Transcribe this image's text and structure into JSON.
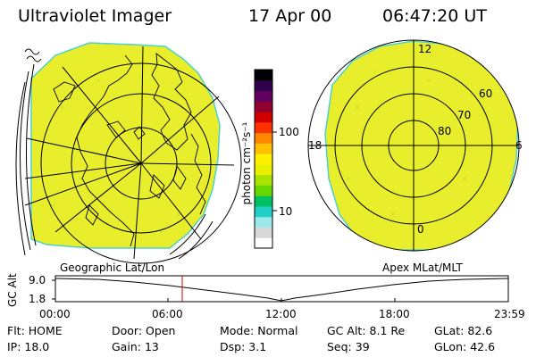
{
  "header": {
    "instrument": "Ultraviolet Imager",
    "date": "17 Apr 00",
    "time": "06:47:20 UT"
  },
  "geo_panel": {
    "label": "Geographic Lat/Lon"
  },
  "apex_panel": {
    "label": "Apex MLat/MLT",
    "mlt_labels": {
      "top": "12",
      "left": "18",
      "right": "6",
      "bottom": "0"
    },
    "lat_labels": [
      "60",
      "70",
      "80"
    ]
  },
  "colorbar": {
    "unit": "photon cm⁻²s⁻¹",
    "ticks": [
      "100",
      "10"
    ],
    "colors": [
      "#ffffff",
      "#d8d8d8",
      "#9be8e8",
      "#22d0c8",
      "#00c060",
      "#66d800",
      "#a8e400",
      "#e8f000",
      "#fff000",
      "#ffc000",
      "#ff8800",
      "#ff3000",
      "#d00000",
      "#900030",
      "#600060",
      "#30004a",
      "#000000"
    ],
    "fill_color": "#e8ee2c"
  },
  "altitude_plot": {
    "ylabel": "GC Alt",
    "yticks": [
      "9.0",
      "1.8"
    ],
    "xticks": [
      "00:00",
      "06:00",
      "12:00",
      "18:00",
      "23:59"
    ],
    "current_time_marker": "06:47"
  },
  "info": {
    "row1": [
      {
        "key": "Flt:",
        "value": "HOME"
      },
      {
        "key": "Door:",
        "value": "Open"
      },
      {
        "key": "Mode:",
        "value": "Normal"
      },
      {
        "key": "GC Alt:",
        "value": "8.1 Re"
      },
      {
        "key": "GLat:",
        "value": "82.6"
      }
    ],
    "row2": [
      {
        "key": "IP:",
        "value": "18.0"
      },
      {
        "key": "Gain:",
        "value": "13"
      },
      {
        "key": "Dsp:",
        "value": "3.1"
      },
      {
        "key": "Seq:",
        "value": "39"
      },
      {
        "key": "GLon:",
        "value": "42.6"
      }
    ]
  }
}
